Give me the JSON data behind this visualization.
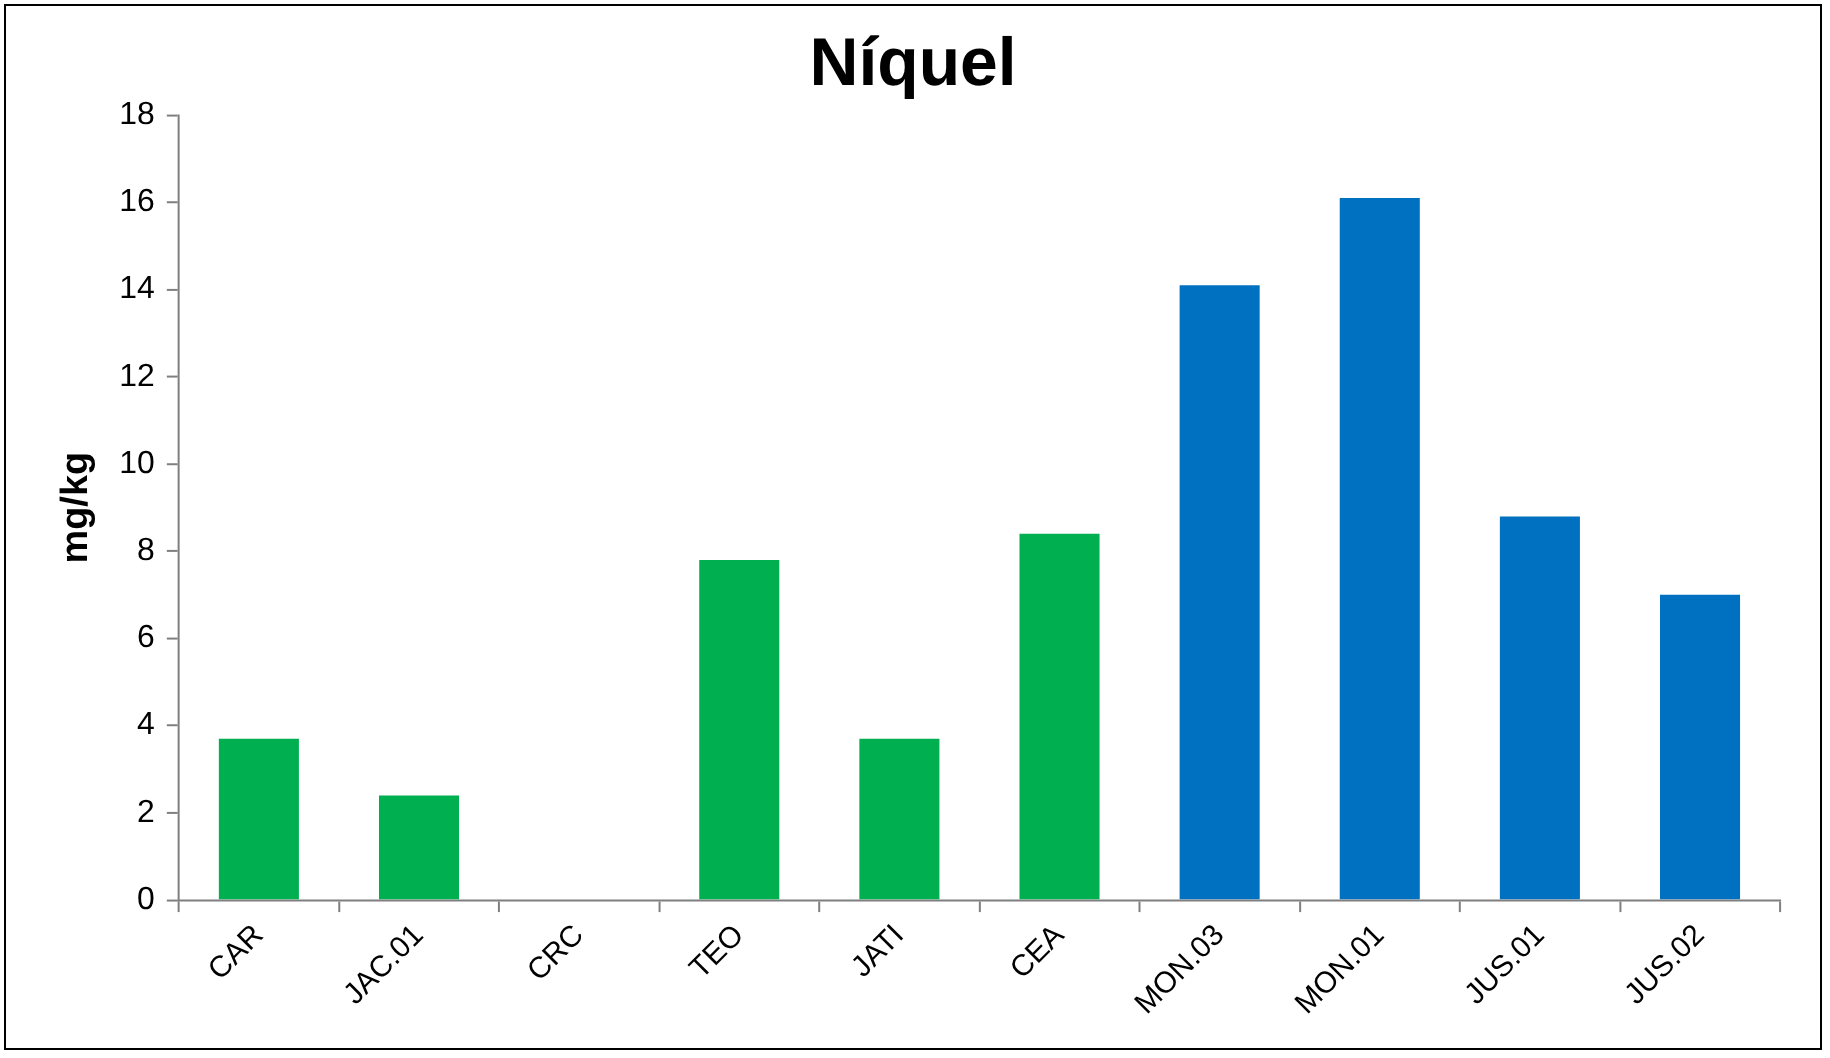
{
  "chart_data": {
    "type": "bar",
    "title": "Níquel",
    "ylabel": "mg/kg",
    "categories": [
      "CAR",
      "JAC.01",
      "CRC",
      "TEO",
      "JATI",
      "CEA",
      "MON.03",
      "MON.01",
      "JUS.01",
      "JUS.02"
    ],
    "values": [
      3.7,
      2.4,
      0,
      7.8,
      3.7,
      8.4,
      14.1,
      16.1,
      8.8,
      7.0
    ],
    "colors": [
      "#00b050",
      "#00b050",
      "#00b050",
      "#00b050",
      "#00b050",
      "#00b050",
      "#0070c0",
      "#0070c0",
      "#0070c0",
      "#0070c0"
    ],
    "ylim": [
      0,
      18
    ],
    "yticks": [
      0,
      2,
      4,
      6,
      8,
      10,
      12,
      14,
      16,
      18
    ],
    "grid": false,
    "legend": false
  }
}
